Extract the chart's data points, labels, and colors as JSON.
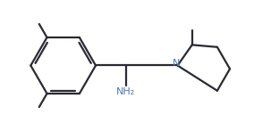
{
  "bg_color": "#ffffff",
  "line_color": "#2a2a35",
  "nh2_color": "#4a7ab5",
  "n_color": "#4a7ab5",
  "line_width": 1.6,
  "figsize": [
    2.84,
    1.47
  ],
  "dpi": 100,
  "xlim": [
    0.0,
    10.5
  ],
  "ylim": [
    0.8,
    5.8
  ]
}
